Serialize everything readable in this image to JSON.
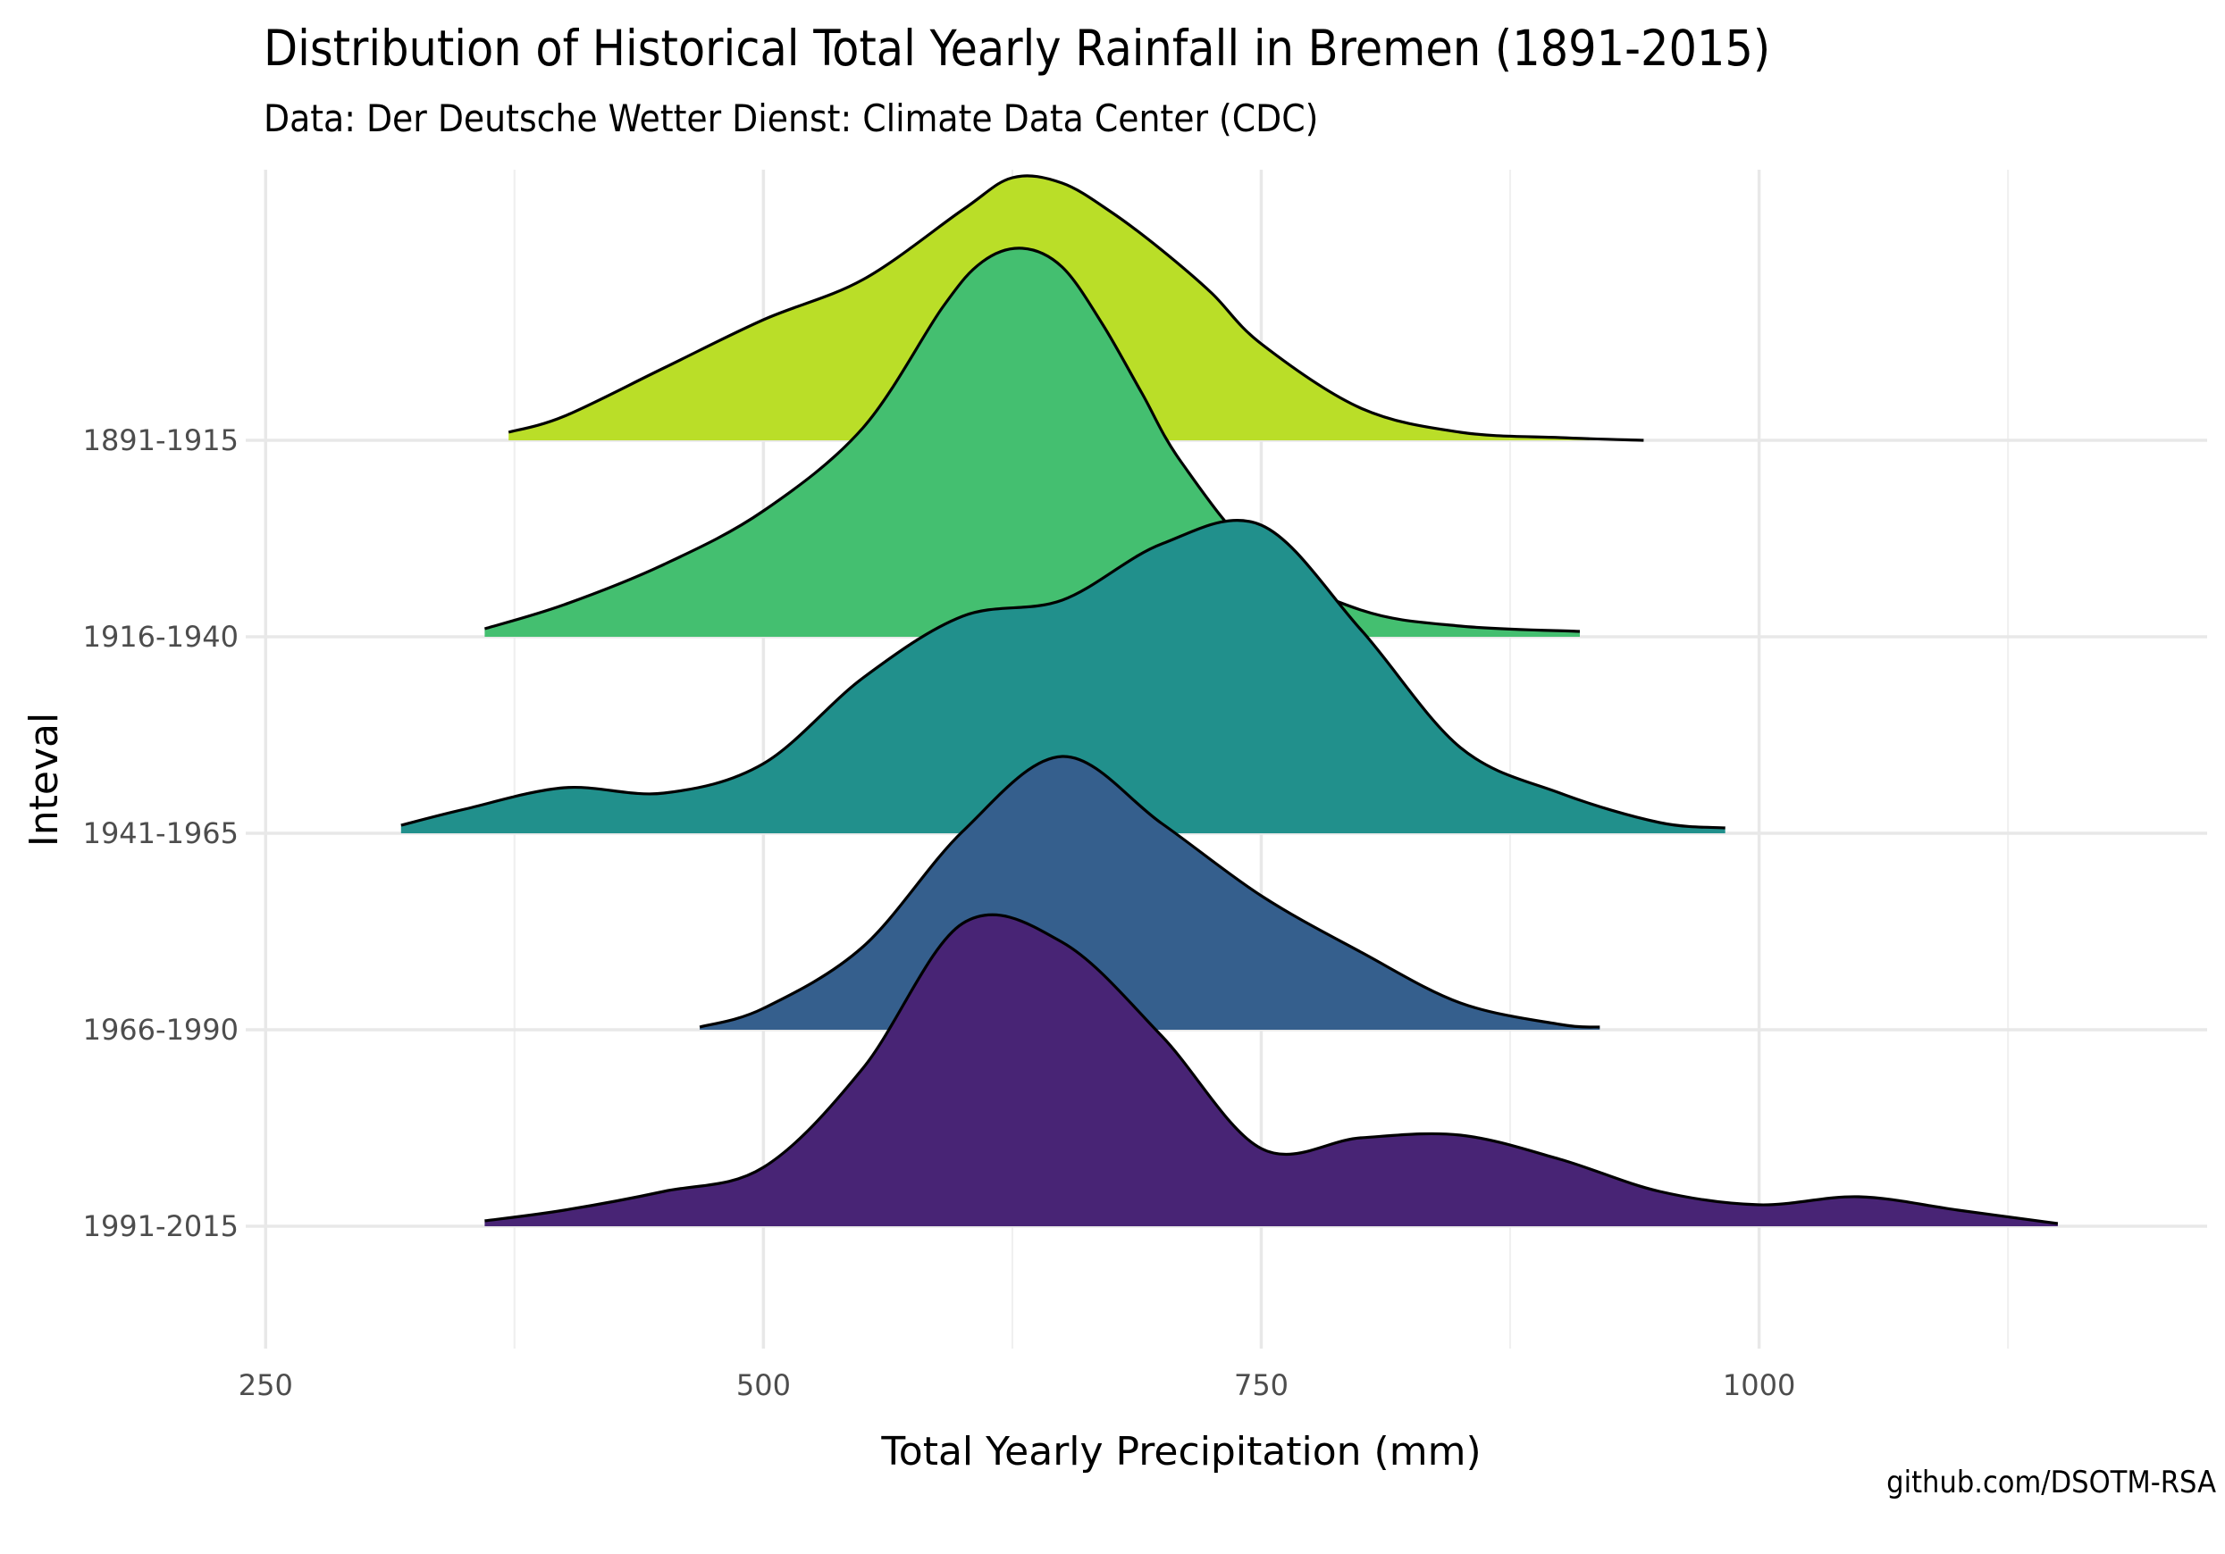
{
  "title": "Distribution of Historical Total Yearly Rainfall in Bremen (1891-2015)",
  "subtitle": "Data: Der Deutsche Wetter Dienst: Climate Data Center (CDC)",
  "caption": "github.com/DSOTM-RSA",
  "chart_data": {
    "type": "ridgeline",
    "xlabel": "Total Yearly Precipitation (mm)",
    "ylabel": "Inteval",
    "xlim": [
      240,
      1225
    ],
    "x_ticks": [
      250,
      500,
      750,
      1000
    ],
    "grid": true,
    "series": [
      {
        "name": "1891-1915",
        "color": "#BADE28",
        "x": [
          372,
          400,
          450,
          500,
          550,
          600,
          625,
          650,
          675,
          700,
          725,
          750,
          800,
          850,
          900,
          942
        ],
        "y": [
          0.03,
          0.09,
          0.27,
          0.45,
          0.6,
          0.86,
          0.98,
          0.96,
          0.85,
          0.71,
          0.55,
          0.36,
          0.12,
          0.03,
          0.01,
          0.0
        ]
      },
      {
        "name": "1916-1940",
        "color": "#44BF70",
        "x": [
          360,
          400,
          450,
          500,
          550,
          590,
          610,
          630,
          650,
          670,
          690,
          710,
          750,
          800,
          850,
          910
        ],
        "y": [
          0.03,
          0.12,
          0.27,
          0.47,
          0.78,
          1.23,
          1.4,
          1.45,
          1.38,
          1.17,
          0.91,
          0.65,
          0.29,
          0.1,
          0.04,
          0.02
        ]
      },
      {
        "name": "1941-1965",
        "color": "#21908C",
        "x": [
          318,
          350,
          400,
          450,
          500,
          550,
          600,
          650,
          700,
          750,
          800,
          850,
          900,
          950,
          983
        ],
        "y": [
          0.03,
          0.09,
          0.17,
          0.15,
          0.26,
          0.58,
          0.81,
          0.87,
          1.08,
          1.15,
          0.76,
          0.32,
          0.15,
          0.04,
          0.02
        ]
      },
      {
        "name": "1966-1990",
        "color": "#355F8D",
        "x": [
          468,
          500,
          550,
          600,
          650,
          700,
          750,
          800,
          850,
          900,
          920
        ],
        "y": [
          0.01,
          0.08,
          0.31,
          0.74,
          1.02,
          0.77,
          0.5,
          0.29,
          0.1,
          0.02,
          0.01
        ]
      },
      {
        "name": "1991-2015",
        "color": "#482475",
        "x": [
          360,
          400,
          450,
          500,
          550,
          600,
          650,
          700,
          750,
          800,
          850,
          900,
          950,
          1000,
          1050,
          1100,
          1150
        ],
        "y": [
          0.02,
          0.06,
          0.13,
          0.22,
          0.59,
          1.13,
          1.06,
          0.71,
          0.29,
          0.33,
          0.34,
          0.25,
          0.13,
          0.08,
          0.11,
          0.06,
          0.01
        ]
      }
    ]
  }
}
